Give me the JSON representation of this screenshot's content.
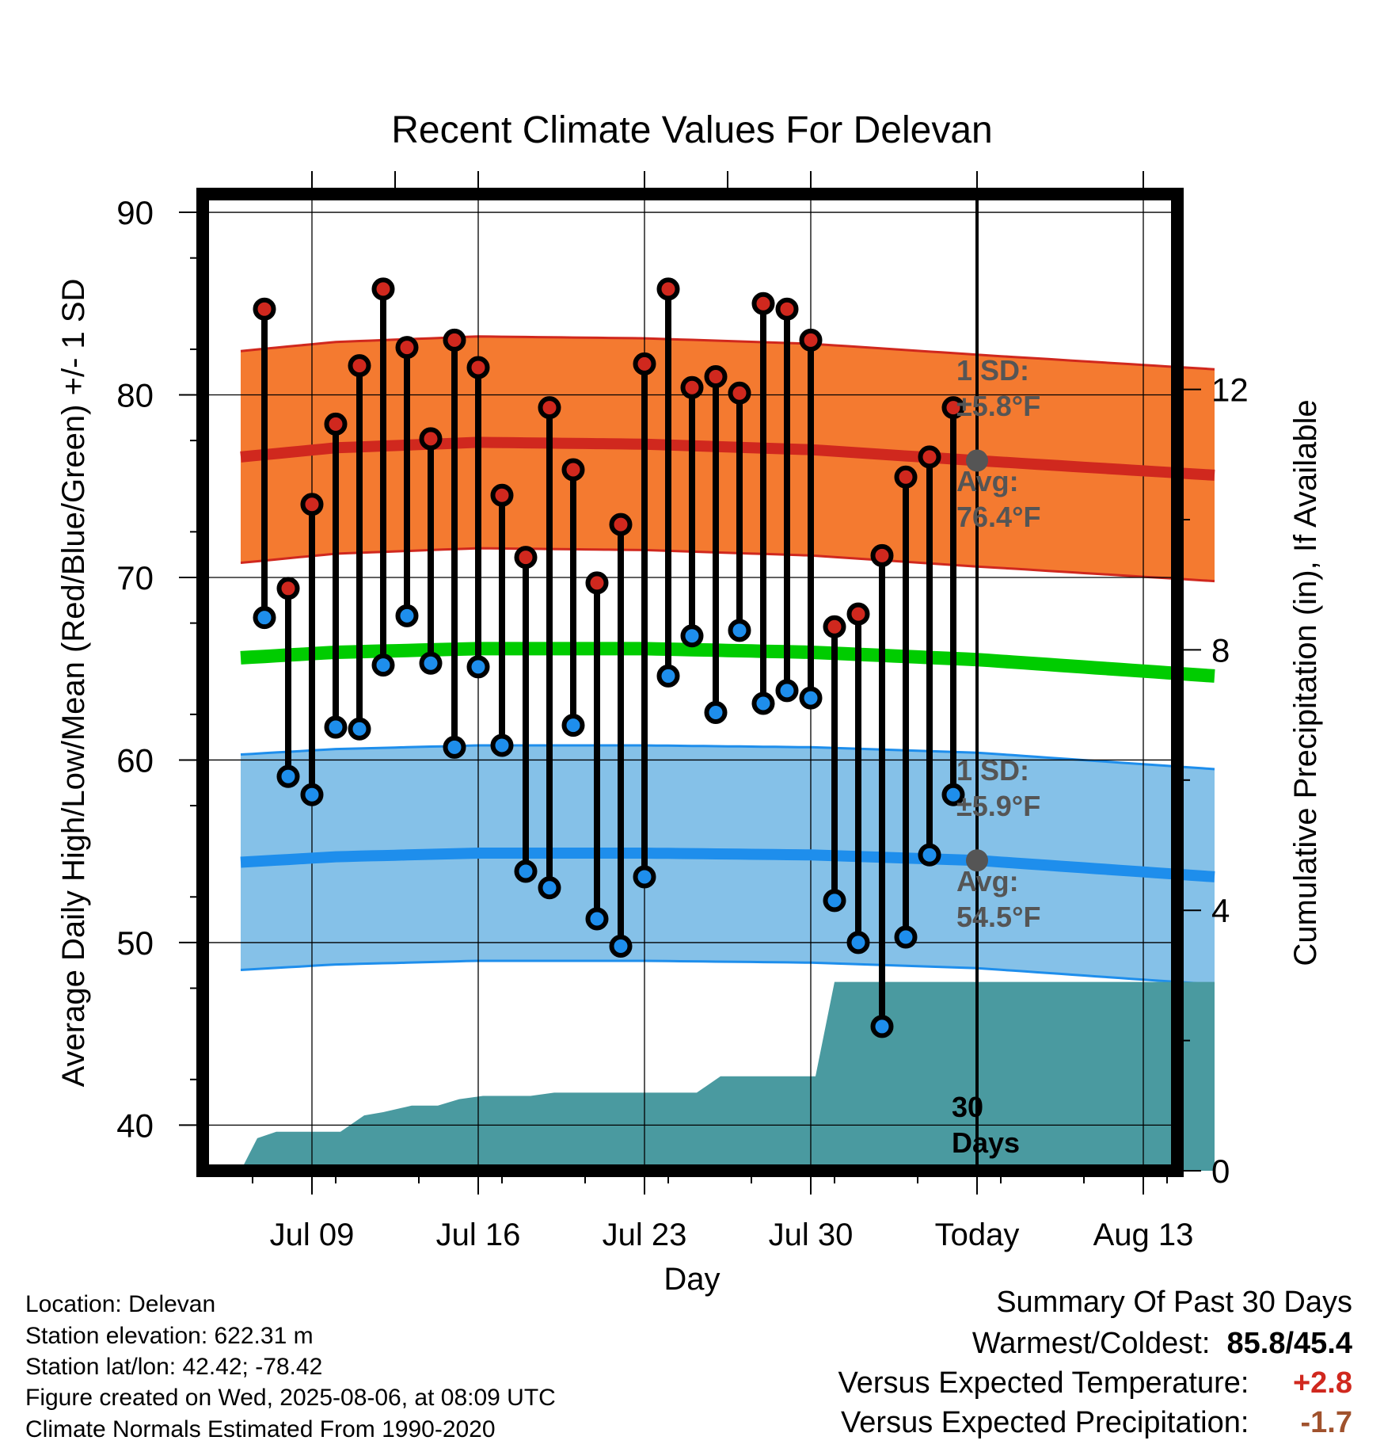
{
  "chart_data": {
    "type": "line",
    "title": "Recent Climate Values For Delevan",
    "xlabel": "Day",
    "ylabel": "Average Daily High/Low/Mean (Red/Blue/Green) +/- 1 SD",
    "y2label": "Cumulative Precipitation (in), If Available",
    "x_start_day": 6,
    "today_day": 37,
    "x_end_day": 47,
    "ylim": [
      37.5,
      91
    ],
    "y_ticks": [
      40,
      50,
      60,
      70,
      80,
      90
    ],
    "y2lim": [
      0,
      15
    ],
    "y2_ticks": [
      0,
      4,
      8,
      12
    ],
    "x_ticks": [
      {
        "day": 9,
        "label": "Jul 09"
      },
      {
        "day": 16,
        "label": "Jul 16"
      },
      {
        "day": 23,
        "label": "Jul 23"
      },
      {
        "day": 30,
        "label": "Jul 30"
      },
      {
        "day": 37,
        "label": "Today"
      },
      {
        "day": 44,
        "label": "Aug 13"
      }
    ],
    "grid": true,
    "colors": {
      "high_band": "#f47a30",
      "high_edge": "#d0281e",
      "high_mean": "#d0281e",
      "low_band": "#85c1e8",
      "low_edge": "#1e8eec",
      "low_mean": "#1e8eec",
      "mean": "#00cc00",
      "precip": "#4a9aa0",
      "high_dot": "#d0281e",
      "low_dot": "#1e8eec",
      "annot": "#555555"
    },
    "normals": {
      "day": [
        6,
        10,
        16,
        23,
        30,
        37,
        47
      ],
      "high_avg": [
        76.6,
        77.1,
        77.4,
        77.3,
        77.0,
        76.4,
        75.6
      ],
      "high_sd": 5.8,
      "low_avg": [
        54.4,
        54.7,
        54.9,
        54.9,
        54.8,
        54.5,
        53.6
      ],
      "low_sd": 5.9,
      "mean_avg": [
        65.6,
        65.9,
        66.1,
        66.1,
        65.9,
        65.5,
        64.6
      ]
    },
    "daily": {
      "day": [
        7,
        8,
        9,
        10,
        11,
        12,
        13,
        14,
        15,
        16,
        17,
        18,
        19,
        20,
        21,
        22,
        23,
        24,
        25,
        26,
        27,
        28,
        29,
        30,
        31,
        32,
        33,
        34,
        35,
        36
      ],
      "high": [
        84.7,
        69.4,
        74.0,
        78.4,
        81.6,
        85.8,
        82.6,
        77.6,
        83.0,
        81.5,
        74.5,
        71.1,
        79.3,
        75.9,
        69.7,
        72.9,
        81.7,
        85.8,
        80.4,
        81.0,
        80.1,
        85.0,
        84.7,
        83.0,
        67.3,
        68.0,
        71.2,
        75.5,
        76.6,
        79.3
      ],
      "low": [
        67.8,
        59.1,
        58.1,
        61.8,
        61.7,
        65.2,
        67.9,
        65.3,
        60.7,
        65.1,
        60.8,
        53.9,
        53.0,
        61.9,
        51.3,
        49.8,
        53.6,
        64.6,
        66.8,
        62.6,
        67.1,
        63.1,
        63.8,
        63.4,
        52.3,
        50.0,
        45.4,
        50.3,
        54.8,
        58.1
      ]
    },
    "precip": {
      "day": [
        6,
        6.7,
        7.5,
        8,
        10.2,
        11.2,
        12,
        13.2,
        14.3,
        15.2,
        16.2,
        17.3,
        18.2,
        19.2,
        20.3,
        21.2,
        22.3,
        23.2,
        24.2,
        25.2,
        26.2,
        27.2,
        28.2,
        29.2,
        30.2,
        31,
        32,
        33,
        34,
        47
      ],
      "value": [
        0,
        0.5,
        0.6,
        0.6,
        0.6,
        0.85,
        0.9,
        1.0,
        1.0,
        1.1,
        1.15,
        1.15,
        1.15,
        1.2,
        1.2,
        1.2,
        1.2,
        1.2,
        1.2,
        1.2,
        1.45,
        1.45,
        1.45,
        1.45,
        1.45,
        2.9,
        2.9,
        2.9,
        2.9,
        2.9
      ]
    },
    "annotations": {
      "high_sd_label": "1 SD:",
      "high_sd_value": "±5.8°F",
      "high_avg_label": "Avg:",
      "high_avg_value": "76.4°F",
      "low_sd_label": "1 SD:",
      "low_sd_value": "±5.9°F",
      "low_avg_label": "Avg:",
      "low_avg_value": "54.5°F",
      "precip_label_1": "30",
      "precip_label_2": "Days"
    }
  },
  "info": {
    "location": "Location: Delevan",
    "elevation": "Station elevation: 622.31 m",
    "latlon": "Station lat/lon: 42.42; -78.42",
    "created": "Figure created on Wed, 2025-08-06, at 08:09 UTC",
    "normals": "Climate Normals Estimated From 1990-2020"
  },
  "summary": {
    "title": "Summary Of Past 30 Days",
    "warm_cold_label": "Warmest/Coldest:",
    "warm_cold_value": "85.8/45.4",
    "temp_label": "Versus Expected Temperature:",
    "temp_value": "+2.8",
    "temp_color": "#d0281e",
    "precip_label": "Versus Expected Precipitation:",
    "precip_value": "-1.7",
    "precip_color": "#a0522d"
  }
}
